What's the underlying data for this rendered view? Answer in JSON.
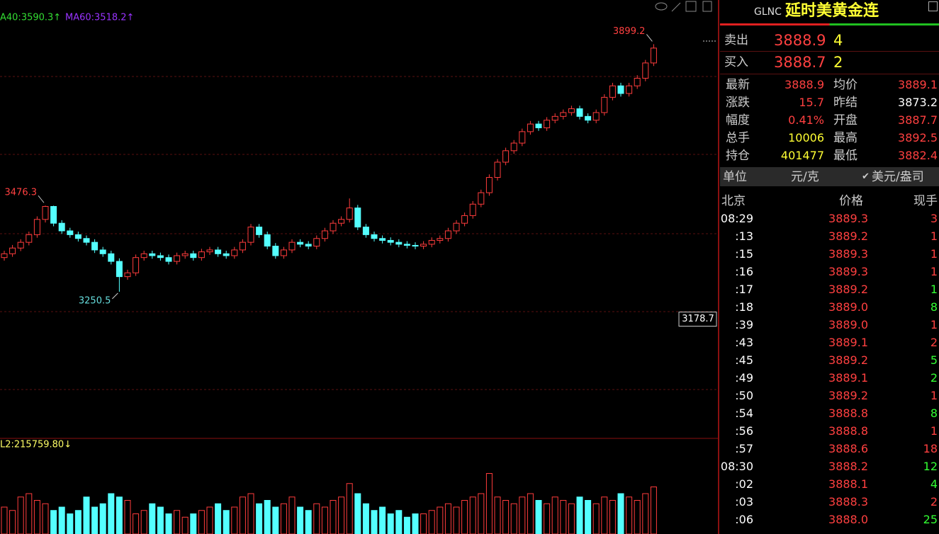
{
  "chart_data": {
    "type": "candlestick",
    "ma_labels": [
      "A40:3590.3↑",
      "MA60:3518.2↑"
    ],
    "open": [
      3340,
      3350,
      3365,
      3380,
      3400,
      3440,
      3474,
      3430,
      3410,
      3400,
      3390,
      3380,
      3360,
      3350,
      3330,
      3290,
      3300,
      3340,
      3350,
      3345,
      3340,
      3330,
      3345,
      3350,
      3340,
      3355,
      3360,
      3350,
      3345,
      3360,
      3380,
      3420,
      3400,
      3370,
      3345,
      3360,
      3380,
      3375,
      3370,
      3390,
      3410,
      3430,
      3440,
      3470,
      3420,
      3400,
      3390,
      3385,
      3380,
      3375,
      3372,
      3370,
      3375,
      3385,
      3390,
      3410,
      3430,
      3450,
      3480,
      3510,
      3550,
      3590,
      3620,
      3640,
      3670,
      3690,
      3680,
      3700,
      3710,
      3720,
      3730,
      3710,
      3700,
      3720,
      3760,
      3790,
      3770,
      3790,
      3810,
      3850
    ],
    "high": [
      3358,
      3373,
      3388,
      3408,
      3448,
      3476.3,
      3476,
      3438,
      3418,
      3408,
      3398,
      3388,
      3368,
      3358,
      3338,
      3308,
      3348,
      3358,
      3358,
      3353,
      3348,
      3353,
      3358,
      3358,
      3363,
      3368,
      3368,
      3358,
      3368,
      3388,
      3428,
      3428,
      3408,
      3378,
      3368,
      3388,
      3388,
      3383,
      3398,
      3418,
      3438,
      3448,
      3495,
      3478,
      3428,
      3408,
      3398,
      3393,
      3388,
      3383,
      3380,
      3383,
      3393,
      3398,
      3418,
      3438,
      3458,
      3488,
      3518,
      3558,
      3598,
      3628,
      3648,
      3678,
      3698,
      3698,
      3708,
      3718,
      3728,
      3738,
      3738,
      3718,
      3728,
      3768,
      3798,
      3798,
      3798,
      3818,
      3858,
      3899.2
    ],
    "low": [
      3332,
      3342,
      3357,
      3372,
      3392,
      3432,
      3422,
      3402,
      3392,
      3382,
      3372,
      3352,
      3342,
      3322,
      3250.5,
      3282,
      3292,
      3332,
      3337,
      3332,
      3322,
      3322,
      3337,
      3332,
      3332,
      3347,
      3342,
      3337,
      3337,
      3352,
      3372,
      3392,
      3362,
      3337,
      3337,
      3352,
      3367,
      3362,
      3362,
      3382,
      3402,
      3422,
      3432,
      3412,
      3392,
      3382,
      3377,
      3372,
      3367,
      3364,
      3362,
      3362,
      3367,
      3377,
      3382,
      3402,
      3422,
      3442,
      3472,
      3502,
      3542,
      3582,
      3612,
      3632,
      3662,
      3672,
      3672,
      3692,
      3702,
      3712,
      3702,
      3692,
      3692,
      3712,
      3752,
      3762,
      3762,
      3782,
      3802,
      3842
    ],
    "close": [
      3350,
      3365,
      3380,
      3400,
      3440,
      3474,
      3430,
      3410,
      3400,
      3390,
      3380,
      3360,
      3350,
      3330,
      3290,
      3300,
      3340,
      3350,
      3345,
      3340,
      3330,
      3345,
      3350,
      3340,
      3355,
      3360,
      3350,
      3345,
      3360,
      3380,
      3420,
      3400,
      3370,
      3345,
      3360,
      3380,
      3375,
      3370,
      3390,
      3410,
      3430,
      3440,
      3470,
      3420,
      3400,
      3390,
      3385,
      3380,
      3375,
      3372,
      3370,
      3375,
      3385,
      3390,
      3410,
      3430,
      3450,
      3480,
      3510,
      3550,
      3590,
      3620,
      3640,
      3670,
      3690,
      3680,
      3700,
      3710,
      3720,
      3730,
      3710,
      3700,
      3720,
      3760,
      3790,
      3770,
      3790,
      3810,
      3850,
      3889
    ],
    "ylim": [
      2868,
      4015
    ],
    "up_color": "#ff3c3c",
    "down_color": "#54ffff",
    "annotations": [
      {
        "value": 3899.2,
        "label": "3899.2"
      },
      {
        "value": 3476.3,
        "label": "3476.3"
      }
    ],
    "low_annotation": {
      "value": 3250.5,
      "label": "3250.5"
    },
    "cursor": {
      "value": 3178.7,
      "label": "3178.7"
    },
    "volume": {
      "label": "L2:215759.80↓",
      "ylim": [
        0,
        120000
      ],
      "values": [
        40000,
        35000,
        55000,
        60000,
        50000,
        45000,
        35000,
        40000,
        30000,
        35000,
        55000,
        40000,
        45000,
        60000,
        55000,
        50000,
        30000,
        35000,
        45000,
        40000,
        30000,
        35000,
        25000,
        30000,
        35000,
        40000,
        45000,
        35000,
        40000,
        55000,
        60000,
        45000,
        50000,
        40000,
        45000,
        55000,
        40000,
        35000,
        45000,
        40000,
        50000,
        55000,
        75000,
        60000,
        45000,
        35000,
        40000,
        30000,
        35000,
        25000,
        30000,
        30000,
        35000,
        40000,
        45000,
        40000,
        50000,
        55000,
        60000,
        90000,
        55000,
        50000,
        45000,
        55000,
        60000,
        50000,
        45000,
        55000,
        50000,
        45000,
        55000,
        50000,
        45000,
        55000,
        50000,
        60000,
        55000,
        50000,
        60000,
        70000
      ]
    }
  },
  "panel": {
    "code": "GLNC",
    "name": "延时美黄金连",
    "quotes": [
      {
        "label": "卖出",
        "price": "3888.9",
        "qty": "4"
      },
      {
        "label": "买入",
        "price": "3888.7",
        "qty": "2"
      }
    ],
    "stats": [
      [
        "最新",
        "3888.9",
        "均价",
        "3889.1"
      ],
      [
        "涨跌",
        "15.7",
        "昨结",
        "3873.2"
      ],
      [
        "幅度",
        "0.41%",
        "开盘",
        "3887.7"
      ],
      [
        "总手",
        "10006",
        "最高",
        "3892.5"
      ],
      [
        "持仓",
        "401477",
        "最低",
        "3882.4"
      ]
    ],
    "unit": [
      "单位",
      "元/克",
      "美元/盎司"
    ],
    "ticks_header": [
      "北京",
      "价格",
      "现手"
    ],
    "ticks": [
      [
        "08:29",
        "3889.3",
        "3"
      ],
      [
        ":13",
        "3889.2",
        "1"
      ],
      [
        ":15",
        "3889.3",
        "1"
      ],
      [
        ":16",
        "3889.3",
        "1"
      ],
      [
        ":17",
        "3889.2",
        "1"
      ],
      [
        ":18",
        "3889.0",
        "8"
      ],
      [
        ":39",
        "3889.0",
        "1"
      ],
      [
        ":43",
        "3889.1",
        "2"
      ],
      [
        ":45",
        "3889.2",
        "5"
      ],
      [
        ":49",
        "3889.1",
        "2"
      ],
      [
        ":50",
        "3889.2",
        "1"
      ],
      [
        ":54",
        "3888.8",
        "8"
      ],
      [
        ":56",
        "3888.8",
        "1"
      ],
      [
        ":57",
        "3888.6",
        "18"
      ],
      [
        "08:30",
        "3888.2",
        "12"
      ],
      [
        ":02",
        "3888.1",
        "4"
      ],
      [
        ":03",
        "3888.3",
        "2"
      ],
      [
        ":06",
        "3888.0",
        "25"
      ]
    ],
    "tick_sides": [
      "up",
      "up",
      "up",
      "up",
      "down",
      "down",
      "up",
      "up",
      "down",
      "down",
      "up",
      "down",
      "up",
      "up",
      "down",
      "down",
      "up",
      "down"
    ]
  }
}
